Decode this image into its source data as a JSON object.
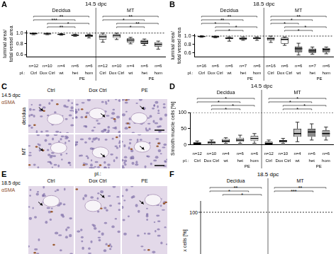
{
  "chart_data": [
    {
      "panel": "A",
      "type": "box",
      "title": "14.5 dpc",
      "ylabel": [
        "luminal area/",
        "total vessel area"
      ],
      "groups": [
        "Decidua",
        "MT"
      ],
      "pl_label": "pl.:",
      "group_labels": [
        "Ctrl",
        "Dox Ctrl",
        "wt",
        "het",
        "hom"
      ],
      "pe_label": "PE",
      "pe_span": [
        3,
        4
      ],
      "categories": [
        "n=12",
        "n=10",
        "n=4",
        "n=6",
        "n=6",
        "n=12",
        "n=10",
        "n=4",
        "n=6",
        "n=6"
      ],
      "boxes": [
        {
          "min": 0.97,
          "q1": 0.98,
          "median": 0.99,
          "q3": 1.0,
          "max": 1.0
        },
        {
          "min": 0.97,
          "q1": 0.98,
          "median": 0.985,
          "q3": 0.99,
          "max": 1.0
        },
        {
          "min": 0.96,
          "q1": 0.97,
          "median": 0.975,
          "q3": 0.98,
          "max": 0.99
        },
        {
          "min": 0.94,
          "q1": 0.95,
          "median": 0.96,
          "q3": 0.975,
          "max": 0.98
        },
        {
          "min": 0.91,
          "q1": 0.93,
          "median": 0.95,
          "q3": 0.97,
          "max": 0.98
        },
        {
          "min": 0.83,
          "q1": 0.88,
          "median": 0.93,
          "q3": 0.97,
          "max": 1.0
        },
        {
          "min": 0.88,
          "q1": 0.91,
          "median": 0.95,
          "q3": 0.98,
          "max": 1.0
        },
        {
          "min": 0.8,
          "q1": 0.83,
          "median": 0.87,
          "q3": 0.9,
          "max": 0.92
        },
        {
          "min": 0.77,
          "q1": 0.8,
          "median": 0.84,
          "q3": 0.87,
          "max": 0.89
        },
        {
          "min": 0.7,
          "q1": 0.75,
          "median": 0.79,
          "q3": 0.83,
          "max": 0.85
        }
      ],
      "colors": [
        "#d9d9d9",
        "#d9d9d9",
        "#d9d9d9",
        "#d9d9d9",
        "#d9d9d9",
        "#f2f2f2",
        "#ffffff",
        "#bfbfbf",
        "#a6a6a6",
        "#bfbfbf"
      ],
      "ylim": [
        0.55,
        1.05
      ],
      "yticks": [
        0.6,
        0.8,
        {
          "value": 1,
          "label": "1.0"
        }
      ],
      "reference_line": 1,
      "significance": [
        {
          "from": 0,
          "to": 4,
          "label": "**"
        },
        {
          "from": 0,
          "to": 3,
          "label": "***"
        },
        {
          "from": 1,
          "to": 4,
          "label": "*"
        },
        {
          "from": 1,
          "to": 3,
          "label": "**"
        },
        {
          "from": 5,
          "to": 9,
          "label": "**"
        },
        {
          "from": 5,
          "to": 8,
          "label": "*"
        },
        {
          "from": 6,
          "to": 9,
          "label": "**"
        },
        {
          "from": 6,
          "to": 8,
          "label": "*"
        }
      ]
    },
    {
      "panel": "B",
      "type": "box",
      "title": "18.5 dpc",
      "ylabel": [
        "luminal area/",
        "total vessel area"
      ],
      "groups": [
        "Decidua",
        "MT"
      ],
      "pl_label": "pl.:",
      "group_labels": [
        "Ctrl",
        "Dox Ctrl",
        "wt",
        "het",
        "hom"
      ],
      "pe_label": "PE",
      "pe_span": [
        3,
        4
      ],
      "categories": [
        "n=16",
        "n=6",
        "n=6",
        "n=7",
        "n=6",
        "n=16",
        "n=6",
        "n=6",
        "n=7",
        "n=6"
      ],
      "boxes": [
        {
          "min": 0.97,
          "q1": 0.98,
          "median": 0.99,
          "q3": 1.0,
          "max": 1.01
        },
        {
          "min": 0.96,
          "q1": 0.97,
          "median": 0.985,
          "q3": 0.995,
          "max": 1.0
        },
        {
          "min": 0.88,
          "q1": 0.93,
          "median": 0.95,
          "q3": 0.97,
          "max": 0.98
        },
        {
          "min": 0.9,
          "q1": 0.92,
          "median": 0.94,
          "q3": 0.97,
          "max": 0.98
        },
        {
          "min": 0.9,
          "q1": 0.93,
          "median": 0.95,
          "q3": 0.97,
          "max": 0.98
        },
        {
          "min": 0.85,
          "q1": 0.9,
          "median": 0.94,
          "q3": 0.97,
          "max": 1.0
        },
        {
          "min": 0.78,
          "q1": 0.82,
          "median": 0.92,
          "q3": 0.96,
          "max": 0.98
        },
        {
          "min": 0.55,
          "q1": 0.62,
          "median": 0.7,
          "q3": 0.75,
          "max": 0.83
        },
        {
          "min": 0.57,
          "q1": 0.6,
          "median": 0.65,
          "q3": 0.7,
          "max": 0.74
        },
        {
          "min": 0.58,
          "q1": 0.62,
          "median": 0.68,
          "q3": 0.72,
          "max": 0.74
        }
      ],
      "colors": [
        "#d9d9d9",
        "#d9d9d9",
        "#d9d9d9",
        "#d9d9d9",
        "#d9d9d9",
        "#f2f2f2",
        "#ffffff",
        "#808080",
        "#808080",
        "#808080"
      ],
      "ylim": [
        0.5,
        1.05
      ],
      "yticks": [
        0.6,
        0.8,
        {
          "value": 1,
          "label": "1.0"
        }
      ],
      "reference_line": 1,
      "significance": [
        {
          "from": 0,
          "to": 4,
          "label": "**"
        },
        {
          "from": 0,
          "to": 3,
          "label": "**"
        },
        {
          "from": 0,
          "to": 2,
          "label": "*"
        },
        {
          "from": 1,
          "to": 4,
          "label": "*"
        },
        {
          "from": 1,
          "to": 3,
          "label": "*"
        },
        {
          "from": 5,
          "to": 9,
          "label": "**"
        },
        {
          "from": 5,
          "to": 8,
          "label": "*"
        },
        {
          "from": 5,
          "to": 7,
          "label": "*"
        },
        {
          "from": 6,
          "to": 9,
          "label": "*"
        },
        {
          "from": 6,
          "to": 8,
          "label": "*"
        }
      ]
    },
    {
      "panel": "D",
      "type": "box",
      "title": "14.5 dpc",
      "ylabel": [
        "Smooth muscle cells [%]"
      ],
      "groups": [
        "Decidua",
        "MT"
      ],
      "pl_label": "pl.:",
      "group_labels": [
        "Ctrl",
        "Dox Ctrl",
        "wt",
        "het",
        "hom"
      ],
      "pe_label": "PE",
      "pe_span": [
        3,
        4
      ],
      "categories": [
        "n=12",
        "n=10",
        "n=4",
        "n=6",
        "n=6",
        "n=12",
        "n=10",
        "n=4",
        "n=6",
        "n=6"
      ],
      "boxes": [
        {
          "min": 0,
          "q1": 2,
          "median": 5,
          "q3": 8,
          "max": 12
        },
        {
          "min": 0,
          "q1": 4,
          "median": 8,
          "q3": 10,
          "max": 15
        },
        {
          "min": 5,
          "q1": 8,
          "median": 12,
          "q3": 18,
          "max": 22
        },
        {
          "min": 5,
          "q1": 10,
          "median": 15,
          "q3": 22,
          "max": 30
        },
        {
          "min": 5,
          "q1": 12,
          "median": 20,
          "q3": 28,
          "max": 35
        },
        {
          "min": 0,
          "q1": 2,
          "median": 5,
          "q3": 10,
          "max": 15
        },
        {
          "min": 5,
          "q1": 8,
          "median": 12,
          "q3": 15,
          "max": 20
        },
        {
          "min": 10,
          "q1": 25,
          "median": 35,
          "q3": 50,
          "max": 70
        },
        {
          "min": 15,
          "q1": 25,
          "median": 40,
          "q3": 50,
          "max": 65
        },
        {
          "min": 15,
          "q1": 25,
          "median": 35,
          "q3": 45,
          "max": 55
        }
      ],
      "colors": [
        "#d9d9d9",
        "#d9d9d9",
        "#d9d9d9",
        "#d9d9d9",
        "#d9d9d9",
        "#f2f2f2",
        "#ffffff",
        "#bfbfbf",
        "#8c8c8c",
        "#a6a6a6"
      ],
      "ylim": [
        0,
        100
      ],
      "yticks": [
        0,
        50,
        100
      ],
      "reference_line": 100,
      "significance": [
        {
          "from": 0,
          "to": 4,
          "label": "*"
        },
        {
          "from": 0,
          "to": 3,
          "label": "*"
        },
        {
          "from": 1,
          "to": 4,
          "label": "*"
        },
        {
          "from": 1,
          "to": 3,
          "label": "*"
        },
        {
          "from": 5,
          "to": 9,
          "label": "*"
        },
        {
          "from": 5,
          "to": 8,
          "label": "*"
        },
        {
          "from": 6,
          "to": 9,
          "label": "*"
        },
        {
          "from": 6,
          "to": 8,
          "label": "*"
        }
      ]
    }
  ],
  "figures": [
    {
      "panel": "C",
      "title": "14.5 dpc",
      "stain": "αSMA",
      "columns": [
        "Ctrl",
        "Dox Ctrl",
        "PE"
      ],
      "rows": [
        "decidua",
        "MT"
      ]
    },
    {
      "panel": "E",
      "title": "18.5 dpc",
      "stain": "αSMA",
      "pl_label": "pl.:",
      "columns": [
        "Ctrl",
        "Dox Ctrl",
        "PE"
      ]
    }
  ],
  "partial_panel": {
    "panel": "F",
    "title": "18.5 dpc",
    "groups": [
      "Decidua",
      "MT"
    ],
    "ylabel": "x cells [%]",
    "yticks": [
      100
    ],
    "reference_line": 100,
    "significance": [
      {
        "from": 0,
        "to": 4,
        "label": "**"
      },
      {
        "from": 0,
        "to": 3,
        "label": "*"
      },
      {
        "from": 1,
        "to": 4,
        "label": "*"
      },
      {
        "from": 5,
        "to": 9,
        "label": "**"
      },
      {
        "from": 5,
        "to": 8,
        "label": "***"
      }
    ]
  }
}
